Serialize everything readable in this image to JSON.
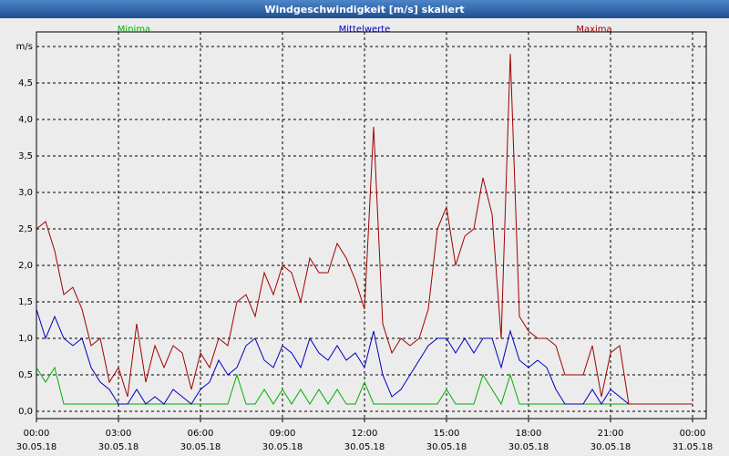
{
  "chart_data": {
    "type": "line",
    "title": "Windgeschwindigkeit [m/s] skaliert",
    "x": [
      0,
      20,
      40,
      60,
      80,
      100,
      120,
      140,
      160,
      180,
      200,
      220,
      240,
      260,
      280,
      300,
      320,
      340,
      360,
      380,
      400,
      420,
      440,
      460,
      480,
      500,
      520,
      540,
      560,
      580,
      600,
      620,
      640,
      660,
      680,
      700,
      720,
      740,
      760,
      780,
      800,
      820,
      840,
      860,
      880,
      900,
      920,
      940,
      960,
      980,
      1000,
      1020,
      1040,
      1060,
      1080,
      1100,
      1120,
      1140,
      1160,
      1180,
      1200,
      1220,
      1240,
      1260,
      1280,
      1300,
      1440
    ],
    "series": [
      {
        "name": "Minima",
        "color": "#00b000",
        "values": [
          0.6,
          0.4,
          0.6,
          0.1,
          0.1,
          0.1,
          0.1,
          0.1,
          0.1,
          0.1,
          0.1,
          0.1,
          0.1,
          0.1,
          0.1,
          0.1,
          0.1,
          0.1,
          0.1,
          0.1,
          0.1,
          0.1,
          0.5,
          0.1,
          0.1,
          0.3,
          0.1,
          0.3,
          0.1,
          0.3,
          0.1,
          0.3,
          0.1,
          0.3,
          0.1,
          0.1,
          0.4,
          0.1,
          0.1,
          0.1,
          0.1,
          0.1,
          0.1,
          0.1,
          0.1,
          0.3,
          0.1,
          0.1,
          0.1,
          0.5,
          0.3,
          0.1,
          0.5,
          0.1,
          0.1,
          0.1,
          0.1,
          0.1,
          0.1,
          0.1,
          0.1,
          0.1,
          0.1,
          0.1,
          0.1,
          0.1,
          0.1
        ]
      },
      {
        "name": "Mittelwerte",
        "color": "#0000c0",
        "values": [
          1.4,
          1.0,
          1.3,
          1.0,
          0.9,
          1.0,
          0.6,
          0.4,
          0.3,
          0.1,
          0.1,
          0.3,
          0.1,
          0.2,
          0.1,
          0.3,
          0.2,
          0.1,
          0.3,
          0.4,
          0.7,
          0.5,
          0.6,
          0.9,
          1.0,
          0.7,
          0.6,
          0.9,
          0.8,
          0.6,
          1.0,
          0.8,
          0.7,
          0.9,
          0.7,
          0.8,
          0.6,
          1.1,
          0.5,
          0.2,
          0.3,
          0.5,
          0.7,
          0.9,
          1.0,
          1.0,
          0.8,
          1.0,
          0.8,
          1.0,
          1.0,
          0.6,
          1.1,
          0.7,
          0.6,
          0.7,
          0.6,
          0.3,
          0.1,
          0.1,
          0.1,
          0.3,
          0.1,
          0.3,
          0.2,
          0.1,
          0.1
        ]
      },
      {
        "name": "Maxima",
        "color": "#a00000",
        "values": [
          2.5,
          2.6,
          2.2,
          1.6,
          1.7,
          1.4,
          0.9,
          1.0,
          0.4,
          0.6,
          0.2,
          1.2,
          0.4,
          0.9,
          0.6,
          0.9,
          0.8,
          0.3,
          0.8,
          0.6,
          1.0,
          0.9,
          1.5,
          1.6,
          1.3,
          1.9,
          1.6,
          2.0,
          1.9,
          1.5,
          2.1,
          1.9,
          1.9,
          2.3,
          2.1,
          1.8,
          1.4,
          3.9,
          1.2,
          0.8,
          1.0,
          0.9,
          1.0,
          1.4,
          2.5,
          2.8,
          2.0,
          2.4,
          2.5,
          3.2,
          2.7,
          1.0,
          4.9,
          1.3,
          1.1,
          1.0,
          1.0,
          0.9,
          0.5,
          0.5,
          0.5,
          0.9,
          0.2,
          0.8,
          0.9,
          0.1,
          0.1
        ]
      }
    ],
    "xlim": [
      0,
      1440
    ],
    "xticks": [
      {
        "value": 0,
        "label": "00:00"
      },
      {
        "value": 180,
        "label": "03:00"
      },
      {
        "value": 360,
        "label": "06:00"
      },
      {
        "value": 540,
        "label": "09:00"
      },
      {
        "value": 720,
        "label": "12:00"
      },
      {
        "value": 900,
        "label": "15:00"
      },
      {
        "value": 1080,
        "label": "18:00"
      },
      {
        "value": 1260,
        "label": "21:00"
      },
      {
        "value": 1440,
        "label": "00:00"
      }
    ],
    "xtick_dates": [
      "30.05.18",
      "30.05.18",
      "30.05.18",
      "30.05.18",
      "30.05.18",
      "30.05.18",
      "30.05.18",
      "30.05.18",
      "31.05.18"
    ],
    "ylim": [
      -0.1,
      5.2
    ],
    "yticks": [
      {
        "value": 0,
        "label": "0,0"
      },
      {
        "value": 0.5,
        "label": "0,5"
      },
      {
        "value": 1,
        "label": "1,0"
      },
      {
        "value": 1.5,
        "label": "1,5"
      },
      {
        "value": 2,
        "label": "2,0"
      },
      {
        "value": 2.5,
        "label": "2,5"
      },
      {
        "value": 3,
        "label": "3,0"
      },
      {
        "value": 3.5,
        "label": "3,5"
      },
      {
        "value": 4,
        "label": "4,0"
      },
      {
        "value": 4.5,
        "label": "4,5"
      },
      {
        "value": 5,
        "label": "m/s"
      }
    ],
    "grid": true
  }
}
